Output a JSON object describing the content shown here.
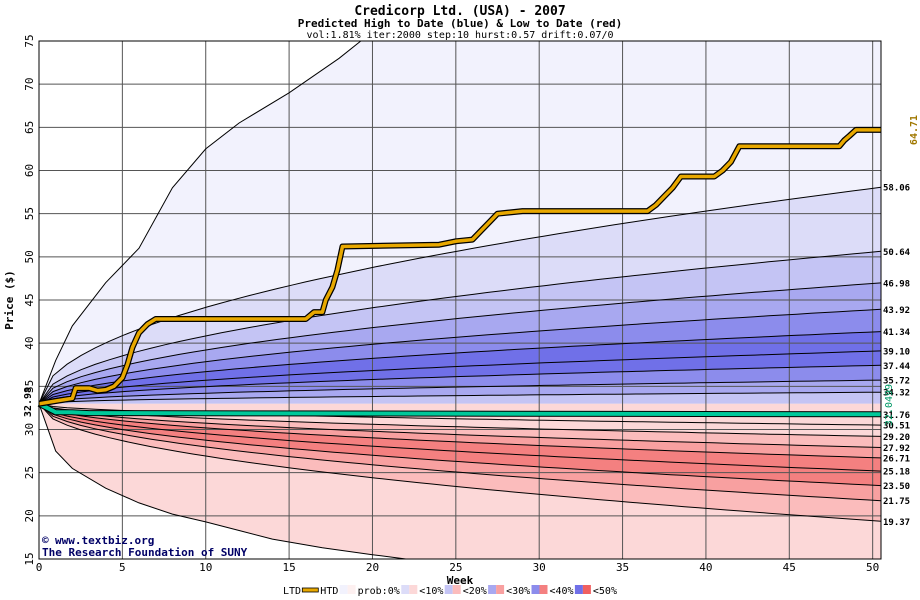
{
  "chart_data": {
    "type": "area",
    "title": "Credicorp Ltd. (USA) - 2007",
    "subtitle": "Predicted High to Date (blue) &  Low to Date (red)",
    "params": "vol:1.81% iter:2000 step:10 hurst:0.57 drift:0.07/0",
    "xlabel": "Week",
    "ylabel": "Price ($)",
    "xlim": [
      0,
      50.5
    ],
    "ylim": [
      15,
      75
    ],
    "xticks": [
      0,
      5,
      10,
      15,
      20,
      25,
      30,
      35,
      40,
      45,
      50
    ],
    "yticks": [
      15,
      20,
      25,
      30,
      35,
      40,
      45,
      50,
      55,
      60,
      65,
      70,
      75
    ],
    "grid": true,
    "start_price": 32.98,
    "start_label": "32.98",
    "current_price": 32.0499,
    "current_label": "32.0499",
    "max_high_label": "64.71",
    "watermark": [
      "www.textbiz.org",
      "The Research Foundation of SUNY"
    ],
    "copyright_symbol": "©",
    "colors": {
      "htd": "#e8a800",
      "ltd": "#00c89a",
      "label_green": "#009966",
      "label_gold": "#a07800",
      "band_blue_0": "#f2f2fd",
      "band_blue_10": "#dcdcf8",
      "band_blue_20": "#c4c4f4",
      "band_blue_30": "#a8a8f0",
      "band_blue_40": "#8c8cec",
      "band_blue_50": "#7070e8",
      "band_red_0": "#fdf0f0",
      "band_red_10": "#fcd8d8",
      "band_red_20": "#fbbcbc",
      "band_red_30": "#f8a0a0",
      "band_red_40": "#f48080"
    },
    "envelope_upper": [
      [
        0,
        32.98
      ],
      [
        1,
        38
      ],
      [
        2,
        42
      ],
      [
        4,
        47
      ],
      [
        6,
        51
      ],
      [
        8,
        58
      ],
      [
        10,
        62.5
      ],
      [
        12,
        65.5
      ],
      [
        15,
        69
      ],
      [
        18,
        73
      ],
      [
        19.3,
        75
      ]
    ],
    "envelope_lower": [
      [
        0,
        32.98
      ],
      [
        1,
        27.5
      ],
      [
        2,
        25.5
      ],
      [
        4,
        23.2
      ],
      [
        6,
        21.5
      ],
      [
        8,
        20.2
      ],
      [
        10,
        19.3
      ],
      [
        12,
        18.3
      ],
      [
        14,
        17.3
      ],
      [
        17,
        16.3
      ],
      [
        20,
        15.5
      ],
      [
        22,
        15
      ]
    ],
    "upper_contours": [
      {
        "label": "58.06",
        "end": 58.06
      },
      {
        "label": "50.64",
        "end": 50.64
      },
      {
        "label": "46.98",
        "end": 46.98
      },
      {
        "label": "43.92",
        "end": 43.92
      },
      {
        "label": "41.34",
        "end": 41.34
      },
      {
        "label": "39.10",
        "end": 39.1
      },
      {
        "label": "37.44",
        "end": 37.44
      },
      {
        "label": "35.72",
        "end": 35.72
      },
      {
        "label": "34.32",
        "end": 34.32
      }
    ],
    "lower_contours": [
      {
        "label": "30.51",
        "end": 30.51
      },
      {
        "label": "29.20",
        "end": 29.2
      },
      {
        "label": "27.92",
        "end": 27.92
      },
      {
        "label": "26.71",
        "end": 26.71
      },
      {
        "label": "25.18",
        "end": 25.18
      },
      {
        "label": "23.50",
        "end": 23.5
      },
      {
        "label": "21.75",
        "end": 21.75
      },
      {
        "label": "19.37",
        "end": 19.37
      }
    ],
    "ltd_label": "31.76",
    "ltd_end": 31.76,
    "htd_series": [
      [
        0,
        32.98
      ],
      [
        1,
        33.3
      ],
      [
        2,
        33.6
      ],
      [
        2.2,
        34.8
      ],
      [
        3,
        34.8
      ],
      [
        3.5,
        34.5
      ],
      [
        4,
        34.6
      ],
      [
        4.5,
        35
      ],
      [
        5,
        36
      ],
      [
        5.3,
        37.5
      ],
      [
        5.6,
        39.5
      ],
      [
        6,
        41.2
      ],
      [
        6.5,
        42.2
      ],
      [
        7,
        42.8
      ],
      [
        12,
        42.8
      ],
      [
        16,
        42.8
      ],
      [
        16.5,
        43.6
      ],
      [
        17,
        43.6
      ],
      [
        17.2,
        45
      ],
      [
        17.6,
        46.5
      ],
      [
        17.9,
        48.5
      ],
      [
        18.2,
        51.2
      ],
      [
        24,
        51.4
      ],
      [
        25,
        51.8
      ],
      [
        26,
        52
      ],
      [
        26.5,
        53
      ],
      [
        27,
        54
      ],
      [
        27.5,
        55
      ],
      [
        29,
        55.3
      ],
      [
        36.5,
        55.3
      ],
      [
        37,
        56
      ],
      [
        37.5,
        57
      ],
      [
        38,
        58
      ],
      [
        38.5,
        59.3
      ],
      [
        40.5,
        59.3
      ],
      [
        41,
        60
      ],
      [
        41.5,
        61
      ],
      [
        42,
        62.8
      ],
      [
        48,
        62.8
      ],
      [
        48.3,
        63.5
      ],
      [
        48.6,
        64
      ],
      [
        49,
        64.7
      ],
      [
        50.5,
        64.7
      ]
    ],
    "ltd_series": [
      [
        0,
        32.98
      ],
      [
        0.6,
        32.4
      ],
      [
        1,
        32.0
      ],
      [
        2,
        32.0
      ],
      [
        3,
        31.9
      ],
      [
        50.5,
        31.76
      ]
    ],
    "legend": [
      {
        "label": "LTD",
        "type": "line",
        "color": "#00c89a"
      },
      {
        "label": "HTD",
        "type": "line",
        "color": "#e8a800"
      },
      {
        "label": "prob:0%",
        "type": "swatch",
        "colors": [
          "#f2f2fd",
          "#fdf0f0"
        ]
      },
      {
        "label": "<10%",
        "type": "swatch",
        "colors": [
          "#dcdcf8",
          "#fcd8d8"
        ]
      },
      {
        "label": "<20%",
        "type": "swatch",
        "colors": [
          "#c4c4f4",
          "#fbbcbc"
        ]
      },
      {
        "label": "<30%",
        "type": "swatch",
        "colors": [
          "#a8a8f0",
          "#f8a0a0"
        ]
      },
      {
        "label": "<40%",
        "type": "swatch",
        "colors": [
          "#8c8cec",
          "#f48080"
        ]
      },
      {
        "label": "<50%",
        "type": "swatch",
        "colors": [
          "#7070e8",
          "#f06060"
        ]
      }
    ]
  }
}
